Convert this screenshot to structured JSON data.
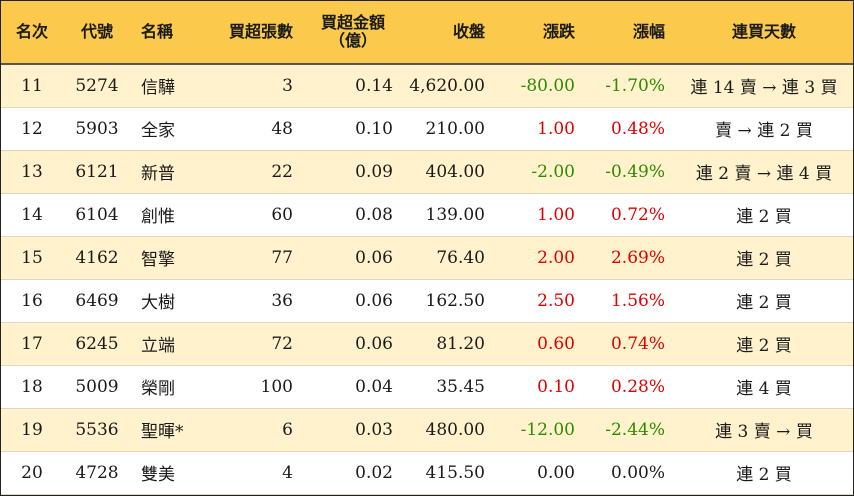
{
  "headers": {
    "rank": "名次",
    "code": "代號",
    "name": "名稱",
    "lots": "買超張數",
    "amount_line1": "買超金額",
    "amount_line2": "（億）",
    "close": "收盤",
    "change": "漲跌",
    "pct": "漲幅",
    "streak": "連買天數"
  },
  "rows": [
    {
      "rank": "11",
      "code": "5274",
      "name": "信驊",
      "lots": "3",
      "amount": "0.14",
      "close": "4,620.00",
      "change": "-80.00",
      "pct": "-1.70%",
      "streak": "連 14 賣 → 連 3 買",
      "trend": "down"
    },
    {
      "rank": "12",
      "code": "5903",
      "name": "全家",
      "lots": "48",
      "amount": "0.10",
      "close": "210.00",
      "change": "1.00",
      "pct": "0.48%",
      "streak": "賣 → 連 2 買",
      "trend": "up"
    },
    {
      "rank": "13",
      "code": "6121",
      "name": "新普",
      "lots": "22",
      "amount": "0.09",
      "close": "404.00",
      "change": "-2.00",
      "pct": "-0.49%",
      "streak": "連 2 賣 → 連 4 買",
      "trend": "down"
    },
    {
      "rank": "14",
      "code": "6104",
      "name": "創惟",
      "lots": "60",
      "amount": "0.08",
      "close": "139.00",
      "change": "1.00",
      "pct": "0.72%",
      "streak": "連 2 買",
      "trend": "up"
    },
    {
      "rank": "15",
      "code": "4162",
      "name": "智擎",
      "lots": "77",
      "amount": "0.06",
      "close": "76.40",
      "change": "2.00",
      "pct": "2.69%",
      "streak": "連 2 買",
      "trend": "up"
    },
    {
      "rank": "16",
      "code": "6469",
      "name": "大樹",
      "lots": "36",
      "amount": "0.06",
      "close": "162.50",
      "change": "2.50",
      "pct": "1.56%",
      "streak": "連 2 買",
      "trend": "up"
    },
    {
      "rank": "17",
      "code": "6245",
      "name": "立端",
      "lots": "72",
      "amount": "0.06",
      "close": "81.20",
      "change": "0.60",
      "pct": "0.74%",
      "streak": "連 2 買",
      "trend": "up"
    },
    {
      "rank": "18",
      "code": "5009",
      "name": "榮剛",
      "lots": "100",
      "amount": "0.04",
      "close": "35.45",
      "change": "0.10",
      "pct": "0.28%",
      "streak": "連 4 買",
      "trend": "up"
    },
    {
      "rank": "19",
      "code": "5536",
      "name": "聖暉*",
      "lots": "6",
      "amount": "0.03",
      "close": "480.00",
      "change": "-12.00",
      "pct": "-2.44%",
      "streak": "連 3 賣 → 買",
      "trend": "down"
    },
    {
      "rank": "20",
      "code": "4728",
      "name": "雙美",
      "lots": "4",
      "amount": "0.02",
      "close": "415.50",
      "change": "0.00",
      "pct": "0.00%",
      "streak": "連 2 買",
      "trend": "flat"
    }
  ],
  "colors": {
    "header_bg": "#fbc94c",
    "odd_row_bg": "#fff2cc",
    "up": "#e00000",
    "down": "#2e8b00"
  }
}
